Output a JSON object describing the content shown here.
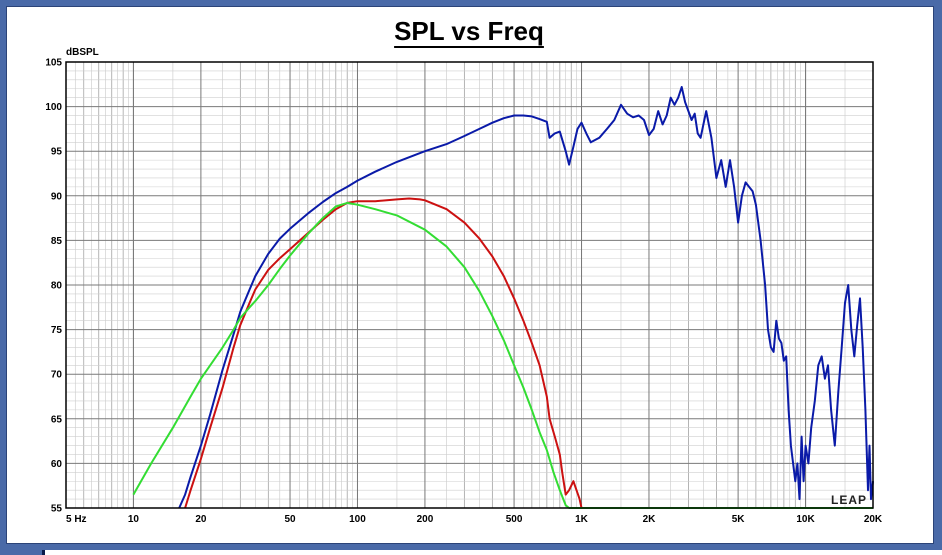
{
  "chart_data": {
    "type": "line",
    "title": "SPL vs Freq",
    "ylabel": "dBSPL",
    "xlabel": "",
    "x_scale": "log",
    "xlim": [
      5,
      20000
    ],
    "ylim": [
      55,
      105
    ],
    "x_ticks": [
      {
        "value": 5,
        "label": "5  Hz"
      },
      {
        "value": 10,
        "label": "10"
      },
      {
        "value": 20,
        "label": "20"
      },
      {
        "value": 50,
        "label": "50"
      },
      {
        "value": 100,
        "label": "100"
      },
      {
        "value": 200,
        "label": "200"
      },
      {
        "value": 500,
        "label": "500"
      },
      {
        "value": 1000,
        "label": "1K"
      },
      {
        "value": 2000,
        "label": "2K"
      },
      {
        "value": 5000,
        "label": "5K"
      },
      {
        "value": 10000,
        "label": "10K"
      },
      {
        "value": 20000,
        "label": "20K"
      }
    ],
    "y_ticks": [
      {
        "value": 105,
        "label": "105"
      },
      {
        "value": 100,
        "label": "100"
      },
      {
        "value": 95,
        "label": "95"
      },
      {
        "value": 90,
        "label": "90"
      },
      {
        "value": 85,
        "label": "85"
      },
      {
        "value": 80,
        "label": "80"
      },
      {
        "value": 75,
        "label": "75"
      },
      {
        "value": 70,
        "label": "70"
      },
      {
        "value": 65,
        "label": "65"
      },
      {
        "value": 60,
        "label": "60"
      },
      {
        "value": 55,
        "label": "55"
      }
    ],
    "grid": true,
    "watermark": "LEAP",
    "series": [
      {
        "color": "#0a1aa8",
        "points": [
          [
            16,
            55
          ],
          [
            17,
            56.5
          ],
          [
            18,
            58.5
          ],
          [
            20,
            62
          ],
          [
            22,
            65.5
          ],
          [
            25,
            70.5
          ],
          [
            28,
            74.5
          ],
          [
            30,
            77
          ],
          [
            33,
            79.5
          ],
          [
            35,
            81
          ],
          [
            40,
            83.5
          ],
          [
            45,
            85.2
          ],
          [
            50,
            86.3
          ],
          [
            60,
            88
          ],
          [
            70,
            89.3
          ],
          [
            80,
            90.3
          ],
          [
            90,
            91
          ],
          [
            100,
            91.7
          ],
          [
            120,
            92.7
          ],
          [
            150,
            93.8
          ],
          [
            200,
            95
          ],
          [
            250,
            95.8
          ],
          [
            300,
            96.7
          ],
          [
            350,
            97.5
          ],
          [
            400,
            98.2
          ],
          [
            450,
            98.7
          ],
          [
            500,
            99
          ],
          [
            550,
            99
          ],
          [
            600,
            98.9
          ],
          [
            650,
            98.6
          ],
          [
            700,
            98.3
          ],
          [
            720,
            96.5
          ],
          [
            760,
            97
          ],
          [
            800,
            97.2
          ],
          [
            850,
            95
          ],
          [
            880,
            93.5
          ],
          [
            920,
            95.5
          ],
          [
            960,
            97.5
          ],
          [
            1000,
            98.2
          ],
          [
            1050,
            97
          ],
          [
            1100,
            96
          ],
          [
            1200,
            96.5
          ],
          [
            1300,
            97.5
          ],
          [
            1400,
            98.5
          ],
          [
            1500,
            100.2
          ],
          [
            1600,
            99.2
          ],
          [
            1700,
            98.8
          ],
          [
            1800,
            99
          ],
          [
            1900,
            98.5
          ],
          [
            2000,
            96.8
          ],
          [
            2100,
            97.5
          ],
          [
            2200,
            99.5
          ],
          [
            2300,
            98
          ],
          [
            2400,
            99
          ],
          [
            2500,
            101
          ],
          [
            2600,
            100.2
          ],
          [
            2700,
            101
          ],
          [
            2800,
            102.2
          ],
          [
            2900,
            100.5
          ],
          [
            3000,
            99.5
          ],
          [
            3100,
            98.5
          ],
          [
            3200,
            99.2
          ],
          [
            3300,
            97
          ],
          [
            3400,
            96.5
          ],
          [
            3600,
            99.5
          ],
          [
            3800,
            96.5
          ],
          [
            4000,
            92
          ],
          [
            4200,
            94
          ],
          [
            4400,
            91
          ],
          [
            4600,
            94
          ],
          [
            4800,
            91
          ],
          [
            5000,
            87
          ],
          [
            5200,
            90
          ],
          [
            5400,
            91.5
          ],
          [
            5600,
            91
          ],
          [
            5800,
            90.5
          ],
          [
            6000,
            89
          ],
          [
            6300,
            85
          ],
          [
            6600,
            80
          ],
          [
            6800,
            75
          ],
          [
            7000,
            73
          ],
          [
            7200,
            72.5
          ],
          [
            7400,
            76
          ],
          [
            7600,
            74
          ],
          [
            7800,
            73.5
          ],
          [
            8000,
            71.5
          ],
          [
            8200,
            72
          ],
          [
            8400,
            66
          ],
          [
            8600,
            62
          ],
          [
            8800,
            60
          ],
          [
            9000,
            58
          ],
          [
            9200,
            60
          ],
          [
            9400,
            56
          ],
          [
            9600,
            63
          ],
          [
            9800,
            58
          ],
          [
            10000,
            62
          ],
          [
            10300,
            60
          ],
          [
            10600,
            64
          ],
          [
            11000,
            67
          ],
          [
            11400,
            71
          ],
          [
            11800,
            72
          ],
          [
            12200,
            69.5
          ],
          [
            12600,
            71
          ],
          [
            13000,
            66
          ],
          [
            13500,
            62
          ],
          [
            14000,
            68
          ],
          [
            14500,
            73
          ],
          [
            15000,
            78
          ],
          [
            15500,
            80
          ],
          [
            16000,
            75
          ],
          [
            16500,
            72
          ],
          [
            17000,
            75.5
          ],
          [
            17500,
            78.5
          ],
          [
            18000,
            73
          ],
          [
            18500,
            66
          ],
          [
            19000,
            57
          ],
          [
            19300,
            62
          ],
          [
            19600,
            56
          ],
          [
            20000,
            58
          ]
        ]
      },
      {
        "color": "#cc1111",
        "points": [
          [
            17,
            55
          ],
          [
            18,
            57
          ],
          [
            20,
            60.5
          ],
          [
            22,
            64
          ],
          [
            25,
            68.5
          ],
          [
            28,
            73
          ],
          [
            30,
            75.5
          ],
          [
            33,
            78
          ],
          [
            35,
            79.5
          ],
          [
            40,
            81.7
          ],
          [
            45,
            83
          ],
          [
            50,
            84
          ],
          [
            60,
            85.8
          ],
          [
            70,
            87.3
          ],
          [
            80,
            88.5
          ],
          [
            90,
            89.2
          ],
          [
            100,
            89.4
          ],
          [
            120,
            89.4
          ],
          [
            150,
            89.6
          ],
          [
            170,
            89.7
          ],
          [
            190,
            89.6
          ],
          [
            200,
            89.5
          ],
          [
            250,
            88.5
          ],
          [
            300,
            87
          ],
          [
            350,
            85.2
          ],
          [
            400,
            83.2
          ],
          [
            450,
            81
          ],
          [
            500,
            78.5
          ],
          [
            550,
            76
          ],
          [
            600,
            73.5
          ],
          [
            650,
            71
          ],
          [
            700,
            67.5
          ],
          [
            720,
            65
          ],
          [
            760,
            63
          ],
          [
            800,
            61
          ],
          [
            820,
            59
          ],
          [
            850,
            56.5
          ],
          [
            880,
            57
          ],
          [
            920,
            58
          ],
          [
            950,
            57
          ],
          [
            980,
            56
          ],
          [
            1000,
            55
          ]
        ]
      },
      {
        "color": "#33dd33",
        "points": [
          [
            10,
            56.5
          ],
          [
            12,
            60
          ],
          [
            15,
            64
          ],
          [
            18,
            67.5
          ],
          [
            20,
            69.5
          ],
          [
            25,
            73
          ],
          [
            28,
            75
          ],
          [
            30,
            76.3
          ],
          [
            33,
            77.5
          ],
          [
            35,
            78.2
          ],
          [
            40,
            80
          ],
          [
            45,
            81.8
          ],
          [
            50,
            83.3
          ],
          [
            60,
            85.7
          ],
          [
            70,
            87.5
          ],
          [
            80,
            88.8
          ],
          [
            90,
            89.2
          ],
          [
            100,
            89
          ],
          [
            120,
            88.5
          ],
          [
            150,
            87.8
          ],
          [
            200,
            86.2
          ],
          [
            250,
            84.3
          ],
          [
            300,
            82
          ],
          [
            350,
            79.3
          ],
          [
            400,
            76.5
          ],
          [
            450,
            73.8
          ],
          [
            500,
            71
          ],
          [
            550,
            68.5
          ],
          [
            600,
            66
          ],
          [
            650,
            63.5
          ],
          [
            700,
            61.5
          ],
          [
            750,
            59
          ],
          [
            800,
            57
          ],
          [
            850,
            55.3
          ],
          [
            880,
            55
          ],
          [
            1000,
            55
          ],
          [
            2000,
            55
          ],
          [
            5000,
            55
          ],
          [
            10000,
            55
          ],
          [
            20000,
            55
          ]
        ]
      }
    ]
  }
}
